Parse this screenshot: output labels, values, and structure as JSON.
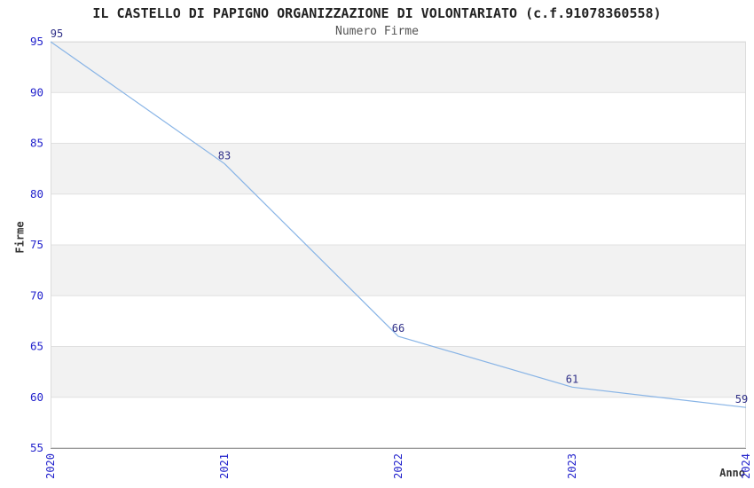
{
  "header": {
    "title": "IL CASTELLO DI PAPIGNO ORGANIZZAZIONE DI VOLONTARIATO (c.f.91078360558)",
    "subtitle": "Numero Firme"
  },
  "chart_data": {
    "type": "line",
    "title": "IL CASTELLO DI PAPIGNO ORGANIZZAZIONE DI VOLONTARIATO (c.f.91078360558)",
    "subtitle": "Numero Firme",
    "xlabel": "Anno",
    "ylabel": "Firme",
    "x": [
      "2020",
      "2021",
      "2022",
      "2023",
      "2024"
    ],
    "series": [
      {
        "name": "Numero Firme",
        "values": [
          95,
          83,
          66,
          61,
          59
        ]
      }
    ],
    "point_labels": [
      "95",
      "83",
      "66",
      "61",
      "59"
    ],
    "ylim": [
      55,
      95
    ],
    "yticks": [
      55,
      60,
      65,
      70,
      75,
      80,
      85,
      90,
      95
    ],
    "grid": "horizontal",
    "bands": "alternating-gray-5-unit",
    "legend": "none"
  },
  "colors": {
    "line": "#88B4E6",
    "tick_label": "#2222CC",
    "point_label": "#303088",
    "band_fill": "#F2F2F2",
    "gridline": "#E0E0E0",
    "plot_border": "#DCDCDC",
    "x_axis_line": "#9A9A9A",
    "title": "#222222",
    "subtitle": "#555555",
    "axis_label": "#333333"
  }
}
